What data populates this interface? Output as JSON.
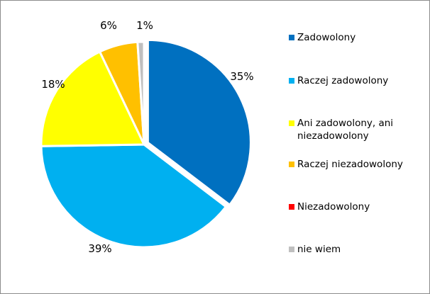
{
  "chart_data": {
    "type": "pie",
    "title": "",
    "slices": [
      {
        "name": "Zadowolony",
        "value": 35,
        "label": "35%",
        "color": "#0070C0"
      },
      {
        "name": "Raczej zadowolony",
        "value": 39,
        "label": "39%",
        "color": "#00B0F0"
      },
      {
        "name": "Ani zadowolony, ani niezadowolony",
        "value": 18,
        "label": "18%",
        "color": "#FFFF00"
      },
      {
        "name": "Raczej niezadowolony",
        "value": 6,
        "label": "6%",
        "color": "#FFC000"
      },
      {
        "name": "Niezadowolony",
        "value": 0,
        "label": "",
        "color": "#FF0000"
      },
      {
        "name": "nie wiem",
        "value": 1,
        "label": "1%",
        "color": "#BFBFBF"
      }
    ],
    "start_angle": "12 o'clock",
    "direction": "clockwise",
    "exploded_slice": "Zadowolony",
    "legend_position": "right"
  }
}
